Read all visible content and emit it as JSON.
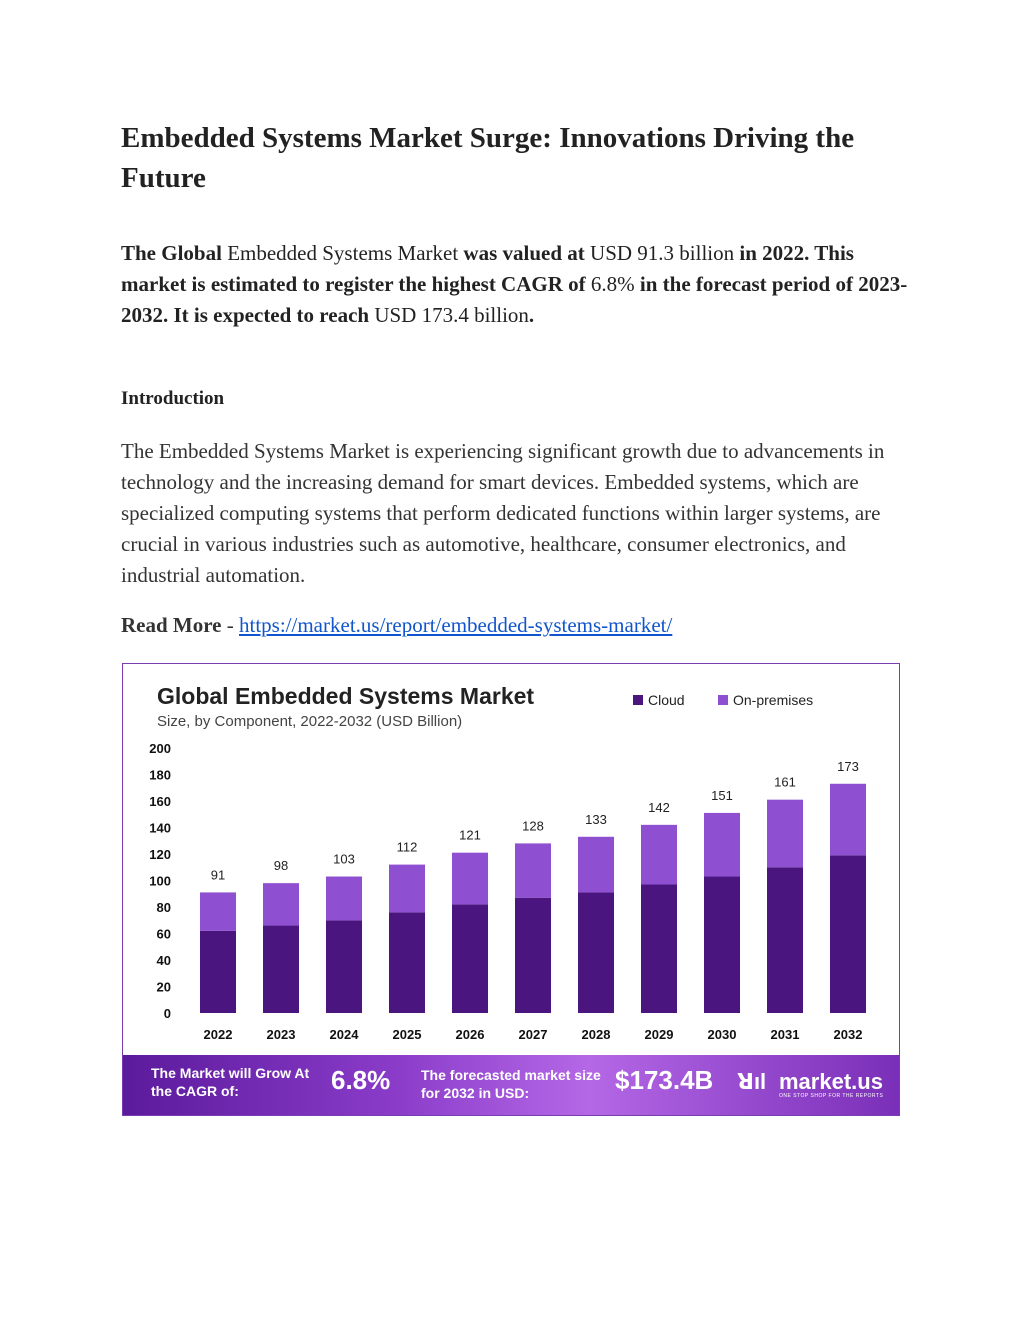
{
  "document": {
    "title": "Embedded Systems Market Surge: Innovations Driving the Future",
    "lead": {
      "p1": "The Global",
      "p2": "Embedded Systems Market",
      "p3": "was valued at",
      "p4": "USD 91.3 billion",
      "p5": "in 2022. This market is estimated to register the highest CAGR of",
      "p6": "6.8%",
      "p7": "in the forecast period of 2023-2032. It is expected to reach",
      "p8": "USD 173.4 billion",
      "p9": "."
    },
    "intro_heading": "Introduction",
    "intro_body": "The Embedded Systems Market is experiencing significant growth due to advancements in technology and the increasing demand for smart devices. Embedded systems, which are specialized computing systems that perform dedicated functions within larger systems, are crucial in various industries such as automotive, healthcare, consumer electronics, and industrial automation.",
    "read_more_label": "Read More",
    "read_more_sep": " - ",
    "read_more_link": "https://market.us/report/embedded-systems-market/"
  },
  "banner": {
    "cagr_label": "The Market will Grow At the CAGR of:",
    "cagr_value": "6.8%",
    "forecast_label": "The forecasted market size for 2032 in USD:",
    "forecast_value": "$173.4B",
    "logo_mark": "ꓤıl",
    "logo_text": "market.us",
    "logo_tagline": "ONE STOP SHOP FOR THE REPORTS"
  },
  "colors": {
    "cloud": "#4b1580",
    "on_premises": "#8e4fd0",
    "axis_text": "#111111"
  },
  "chart_data": {
    "type": "bar",
    "stacked": true,
    "title": "Global Embedded Systems Market",
    "subtitle": "Size, by Component, 2022-2032 (USD Billion)",
    "categories": [
      "2022",
      "2023",
      "2024",
      "2025",
      "2026",
      "2027",
      "2028",
      "2029",
      "2030",
      "2031",
      "2032"
    ],
    "series": [
      {
        "name": "Cloud",
        "values": [
          62,
          66,
          70,
          76,
          82,
          87,
          91,
          97,
          103,
          110,
          119
        ]
      },
      {
        "name": "On-premises",
        "values": [
          29,
          32,
          33,
          36,
          39,
          41,
          42,
          45,
          48,
          51,
          54
        ]
      }
    ],
    "totals": [
      91,
      98,
      103,
      112,
      121,
      128,
      133,
      142,
      151,
      161,
      173
    ],
    "yticks": [
      0,
      20,
      40,
      60,
      80,
      100,
      120,
      140,
      160,
      180,
      200
    ],
    "ylim": [
      0,
      200
    ],
    "legend": "top-right"
  }
}
